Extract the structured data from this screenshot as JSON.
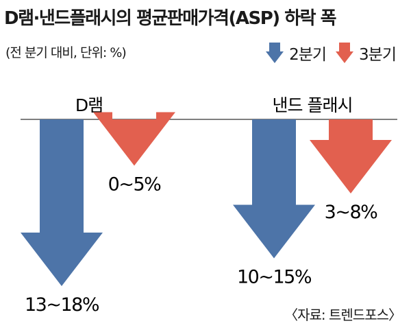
{
  "title": "D램·낸드플래시의 평균판매가격(ASP) 하락 폭",
  "subtitle": "(전 분기 대비, 단위: %)",
  "source": "〈자료: 트렌드포스〉",
  "colors": {
    "q2": "#4d74a8",
    "q3": "#e2604f",
    "baseline": "#555555"
  },
  "legend": [
    {
      "label": "2분기",
      "color": "#4d74a8",
      "shape": "down-arrow"
    },
    {
      "label": "3분기",
      "color": "#e2604f",
      "shape": "down-arrow"
    }
  ],
  "chart_data": {
    "type": "bar",
    "orientation": "downward-arrows",
    "categories": [
      "D램",
      "낸드 플래시"
    ],
    "series": [
      {
        "name": "2분기",
        "color": "#4d74a8",
        "values": [
          [
            13,
            18
          ],
          [
            10,
            15
          ]
        ],
        "labels": [
          "13~18%",
          "10~15%"
        ]
      },
      {
        "name": "3분기",
        "color": "#e2604f",
        "values": [
          [
            0,
            5
          ],
          [
            3,
            8
          ]
        ],
        "labels": [
          "0~5%",
          "3~8%"
        ]
      }
    ],
    "unit": "%",
    "gridlines": false,
    "legend_position": "top-right"
  }
}
